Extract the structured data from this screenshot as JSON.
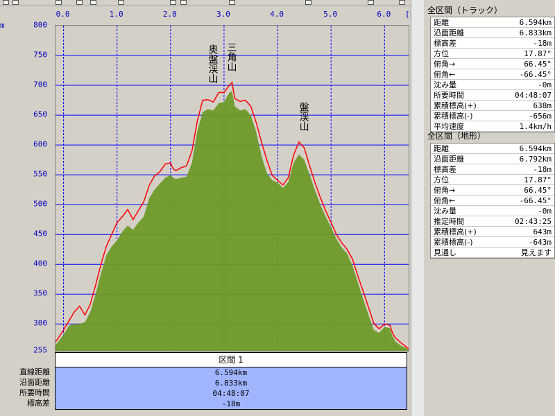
{
  "chart_data": {
    "type": "area",
    "x_unit": "[km]",
    "y_unit": "m",
    "xlim": [
      -0.15,
      6.45
    ],
    "ylim": [
      255,
      800
    ],
    "xticks": [
      "0.0",
      "1.0",
      "2.0",
      "3.0",
      "4.0",
      "5.0",
      "6.0"
    ],
    "yticks": [
      "800",
      "750",
      "700",
      "650",
      "600",
      "550",
      "500",
      "450",
      "400",
      "350",
      "300",
      "255"
    ],
    "series": [
      {
        "name": "",
        "style": "line",
        "color": "#ff0000",
        "x": [
          -0.15,
          -0.1,
          0.0,
          0.1,
          0.2,
          0.3,
          0.4,
          0.5,
          0.6,
          0.7,
          0.8,
          0.9,
          1.0,
          1.1,
          1.2,
          1.3,
          1.4,
          1.5,
          1.6,
          1.7,
          1.8,
          1.9,
          2.0,
          2.05,
          2.1,
          2.2,
          2.3,
          2.4,
          2.5,
          2.6,
          2.7,
          2.8,
          2.9,
          3.0,
          3.1,
          3.15,
          3.2,
          3.3,
          3.4,
          3.5,
          3.6,
          3.7,
          3.8,
          3.9,
          4.0,
          4.1,
          4.2,
          4.3,
          4.4,
          4.5,
          4.6,
          4.7,
          4.8,
          4.9,
          5.0,
          5.1,
          5.2,
          5.3,
          5.4,
          5.5,
          5.6,
          5.7,
          5.8,
          5.9,
          6.0,
          6.1,
          6.15,
          6.2,
          6.3,
          6.4,
          6.45
        ],
        "values": [
          270,
          276,
          290,
          305,
          320,
          330,
          315,
          333,
          365,
          400,
          430,
          450,
          470,
          480,
          492,
          475,
          490,
          505,
          532,
          548,
          555,
          568,
          570,
          560,
          557,
          562,
          565,
          590,
          640,
          675,
          676,
          672,
          688,
          688,
          700,
          705,
          678,
          673,
          675,
          665,
          638,
          605,
          575,
          549,
          541,
          533,
          545,
          583,
          605,
          595,
          565,
          537,
          512,
          490,
          470,
          450,
          436,
          425,
          409,
          381,
          355,
          328,
          301,
          292,
          300,
          298,
          285,
          277,
          269,
          262,
          258
        ]
      },
      {
        "name": "",
        "style": "area",
        "color": "#6e9a28",
        "x": [
          -0.15,
          -0.1,
          0.0,
          0.1,
          0.2,
          0.3,
          0.4,
          0.5,
          0.6,
          0.7,
          0.8,
          0.9,
          1.0,
          1.1,
          1.2,
          1.3,
          1.4,
          1.5,
          1.6,
          1.7,
          1.8,
          1.9,
          2.0,
          2.05,
          2.1,
          2.2,
          2.3,
          2.4,
          2.5,
          2.6,
          2.7,
          2.8,
          2.9,
          3.0,
          3.1,
          3.15,
          3.2,
          3.3,
          3.4,
          3.5,
          3.6,
          3.7,
          3.8,
          3.9,
          4.0,
          4.1,
          4.2,
          4.3,
          4.4,
          4.5,
          4.6,
          4.7,
          4.8,
          4.9,
          5.0,
          5.1,
          5.2,
          5.3,
          5.4,
          5.5,
          5.6,
          5.7,
          5.8,
          5.9,
          6.0,
          6.1,
          6.15,
          6.2,
          6.3,
          6.4,
          6.45
        ],
        "values": [
          265,
          270,
          282,
          297,
          300,
          300,
          303,
          320,
          350,
          385,
          415,
          430,
          440,
          455,
          465,
          458,
          470,
          480,
          510,
          525,
          535,
          545,
          550,
          545,
          543,
          545,
          547,
          570,
          623,
          655,
          660,
          658,
          670,
          672,
          688,
          690,
          665,
          658,
          660,
          650,
          622,
          582,
          553,
          541,
          537,
          528,
          538,
          570,
          584,
          575,
          550,
          524,
          500,
          480,
          462,
          443,
          428,
          418,
          398,
          370,
          342,
          315,
          290,
          285,
          295,
          293,
          280,
          271,
          264,
          260,
          256
        ]
      }
    ],
    "annotations": [
      {
        "text": "奥盤渓山",
        "x": 2.8,
        "y": 682
      },
      {
        "text": "三角山",
        "x": 3.15,
        "y": 705
      },
      {
        "text": "盤渓山",
        "x": 4.5,
        "y": 605
      }
    ]
  },
  "summary": {
    "header": "区間 1",
    "labels": [
      "直線距離",
      "沿面距離",
      "所要時間",
      "標高差"
    ],
    "values": [
      "6.594km",
      "6.833km",
      "04:48:07",
      "-18m"
    ]
  },
  "panel_track": {
    "title": "全区間（トラック）",
    "rows": [
      {
        "label": "距離",
        "value": "6.594km"
      },
      {
        "label": "沿面距離",
        "value": "6.833km"
      },
      {
        "label": "標高差",
        "value": "-18m"
      },
      {
        "label": "方位",
        "value": "17.87°"
      },
      {
        "label": "俯角→",
        "value": "66.45°"
      },
      {
        "label": "俯角←",
        "value": "-66.45°"
      },
      {
        "label": "沈み量",
        "value": "-0m"
      },
      {
        "label": "所要時間",
        "value": "04:48:07"
      },
      {
        "label": "累積標高(+)",
        "value": "638m"
      },
      {
        "label": "累積標高(-)",
        "value": "-656m"
      },
      {
        "label": "平均速度",
        "value": "1.4km/h"
      }
    ]
  },
  "panel_terrain": {
    "title": "全区間（地形）",
    "rows": [
      {
        "label": "距離",
        "value": "6.594km"
      },
      {
        "label": "沿面距離",
        "value": "6.792km"
      },
      {
        "label": "標高差",
        "value": "-18m"
      },
      {
        "label": "方位",
        "value": "17.87°"
      },
      {
        "label": "俯角→",
        "value": "66.45°"
      },
      {
        "label": "俯角←",
        "value": "-66.45°"
      },
      {
        "label": "沈み量",
        "value": "-0m"
      },
      {
        "label": "推定時間",
        "value": "02:43:25"
      },
      {
        "label": "累積標高(+)",
        "value": "643m"
      },
      {
        "label": "累積標高(-)",
        "value": "-643m"
      },
      {
        "label": "見通し",
        "value": "見えます"
      }
    ]
  },
  "colors": {
    "grid": "#0000ff",
    "profile_track": "#ff0000",
    "profile_terrain": "#6e9a28",
    "summary_bg": "#a0b4ff"
  }
}
